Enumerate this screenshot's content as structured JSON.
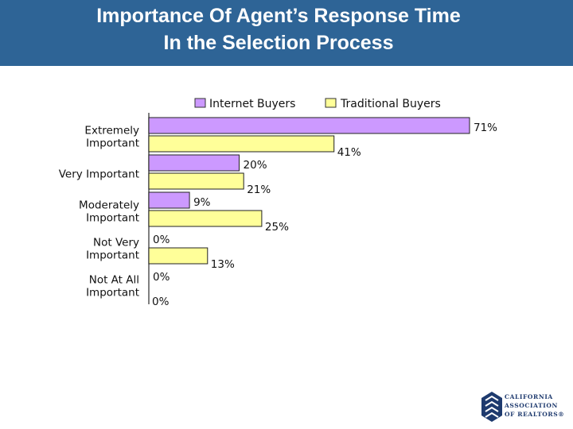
{
  "header": {
    "title_line1": "Importance Of Agent’s Response Time",
    "title_line2": "In the Selection Process"
  },
  "colors": {
    "header_bg": "#2e6496",
    "internet": "#cc99ff",
    "traditional": "#ffff99"
  },
  "chart_data": {
    "type": "bar",
    "orientation": "horizontal",
    "categories": [
      [
        "Extremely",
        "Important"
      ],
      [
        "Very Important"
      ],
      [
        "Moderately",
        "Important"
      ],
      [
        "Not Very",
        "Important"
      ],
      [
        "Not At All",
        "Important"
      ]
    ],
    "series": [
      {
        "name": "Internet Buyers",
        "values": [
          71,
          20,
          9,
          0,
          0
        ],
        "labels": [
          "71%",
          "20%",
          "9%",
          "0%",
          "0%"
        ]
      },
      {
        "name": "Traditional Buyers",
        "values": [
          41,
          21,
          25,
          13,
          0
        ],
        "labels": [
          "41%",
          "21%",
          "25%",
          "13%",
          "0%"
        ]
      }
    ],
    "xlim": [
      0,
      71
    ],
    "legend": "top",
    "grid": false
  },
  "logo": {
    "lines": [
      "CALIFORNIA",
      "ASSOCIATION",
      "OF REALTORS®"
    ]
  }
}
